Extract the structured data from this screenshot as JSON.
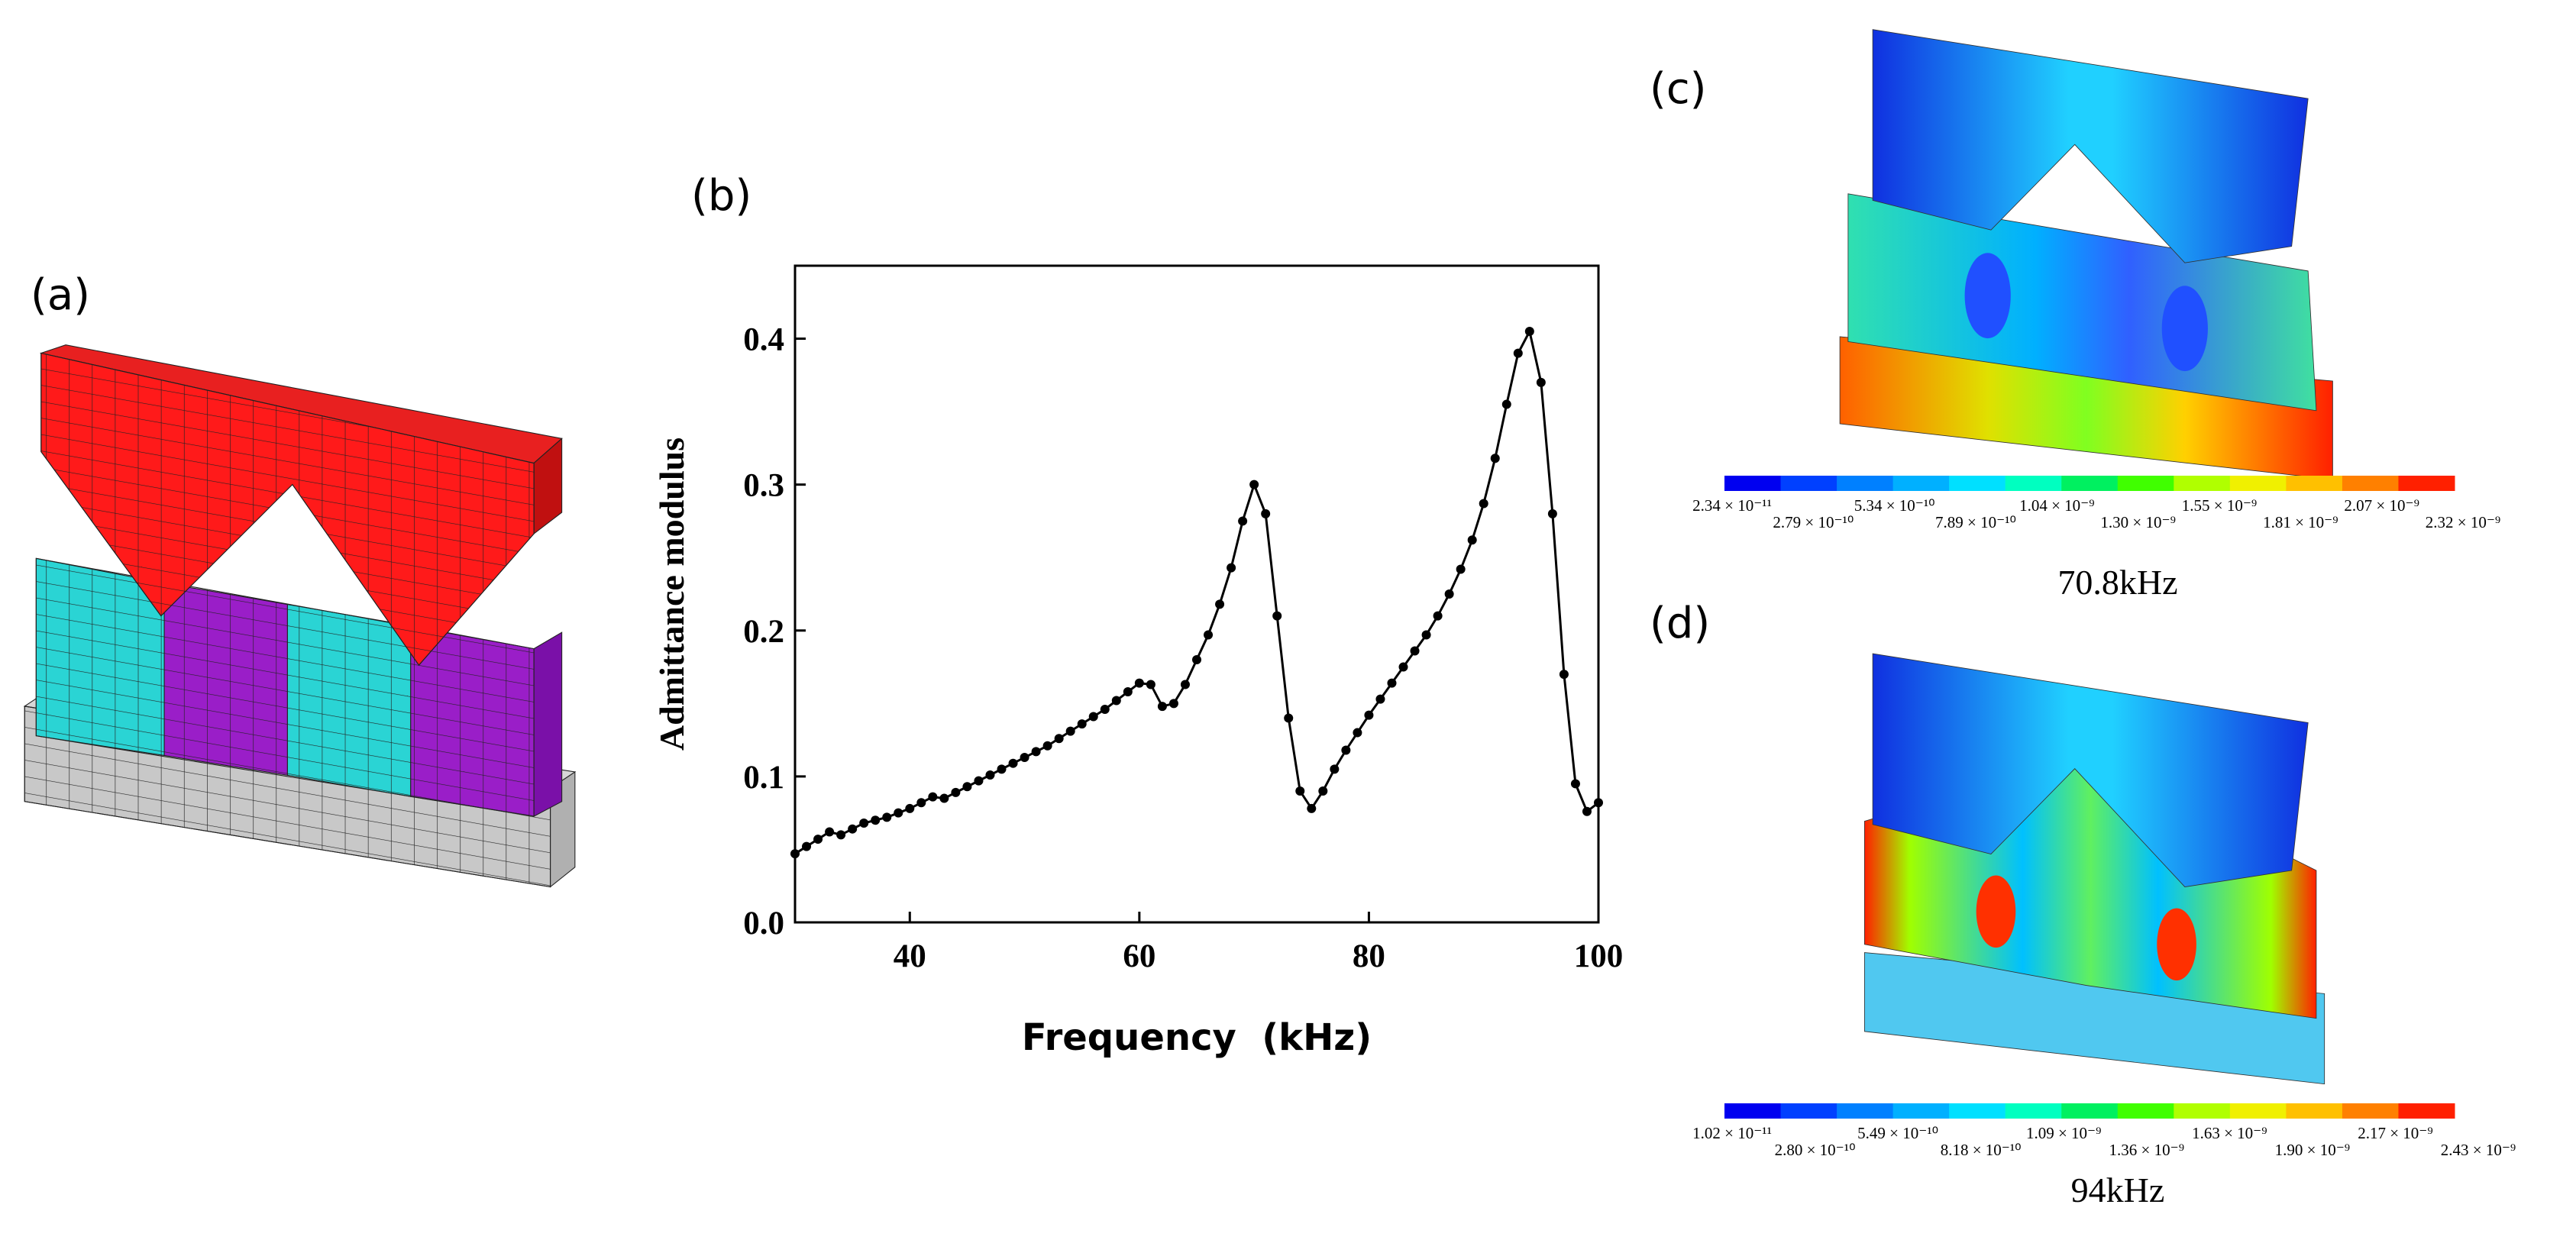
{
  "panels": {
    "a": {
      "label": "(a)"
    },
    "b": {
      "label": "(b)"
    },
    "c": {
      "label": "(c)",
      "frequency": "70.8kHz",
      "colorbar_labels": [
        "2.34 × 10⁻¹¹",
        "2.79 × 10⁻¹⁰",
        "5.34 × 10⁻¹⁰",
        "7.89 × 10⁻¹⁰",
        "1.04 × 10⁻⁹",
        "1.30 × 10⁻⁹",
        "1.55 × 10⁻⁹",
        "1.81 × 10⁻⁹",
        "2.07 × 10⁻⁹",
        "2.32 × 10⁻⁹"
      ]
    },
    "d": {
      "label": "(d)",
      "frequency": "94kHz",
      "colorbar_labels": [
        "1.02 × 10⁻¹¹",
        "2.80 × 10⁻¹⁰",
        "5.49 × 10⁻¹⁰",
        "8.18 × 10⁻¹⁰",
        "1.09 × 10⁻⁹",
        "1.36 × 10⁻⁹",
        "1.63 × 10⁻⁹",
        "1.90 × 10⁻⁹",
        "2.17 × 10⁻⁹",
        "2.43 × 10⁻⁹"
      ]
    }
  },
  "chart_data": {
    "type": "line",
    "x_label": "Frequency  (kHz)",
    "y_label": "Admittance modulus",
    "color": "#000000",
    "x": [
      30,
      31,
      32,
      33,
      34,
      35,
      36,
      37,
      38,
      39,
      40,
      41,
      42,
      43,
      44,
      45,
      46,
      47,
      48,
      49,
      50,
      51,
      52,
      53,
      54,
      55,
      56,
      57,
      58,
      59,
      60,
      61,
      62,
      63,
      64,
      65,
      66,
      67,
      68,
      69,
      70,
      71,
      72,
      73,
      74,
      75,
      76,
      77,
      78,
      79,
      80,
      81,
      82,
      83,
      84,
      85,
      86,
      87,
      88,
      89,
      90,
      91,
      92,
      93,
      94,
      95,
      96,
      97,
      98,
      99,
      100
    ],
    "values": [
      0.047,
      0.052,
      0.057,
      0.062,
      0.06,
      0.064,
      0.068,
      0.07,
      0.072,
      0.075,
      0.078,
      0.082,
      0.086,
      0.085,
      0.089,
      0.093,
      0.097,
      0.101,
      0.105,
      0.109,
      0.113,
      0.117,
      0.121,
      0.126,
      0.131,
      0.136,
      0.141,
      0.146,
      0.152,
      0.158,
      0.164,
      0.163,
      0.148,
      0.15,
      0.163,
      0.18,
      0.197,
      0.218,
      0.243,
      0.275,
      0.3,
      0.28,
      0.21,
      0.14,
      0.09,
      0.078,
      0.09,
      0.105,
      0.118,
      0.13,
      0.142,
      0.153,
      0.164,
      0.175,
      0.186,
      0.197,
      0.21,
      0.225,
      0.242,
      0.262,
      0.287,
      0.318,
      0.355,
      0.39,
      0.405,
      0.37,
      0.28,
      0.17,
      0.095,
      0.076,
      0.082
    ],
    "xlim": [
      30,
      100
    ],
    "xticks": [
      40,
      60,
      80,
      100
    ],
    "ylim": [
      0,
      0.45
    ],
    "yticks": [
      {
        "value": 0,
        "label": "0.0"
      },
      0.1,
      0.2,
      0.3,
      0.4
    ]
  }
}
